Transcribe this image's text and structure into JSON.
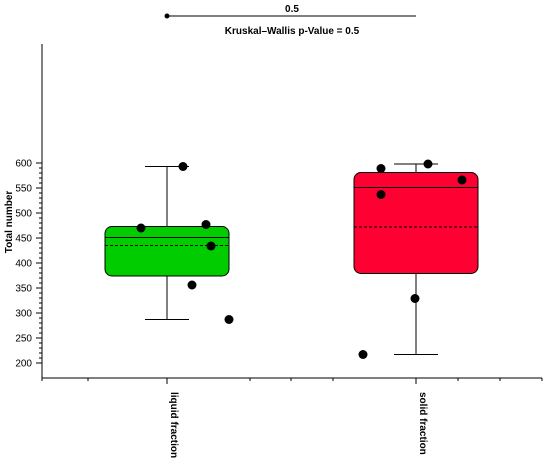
{
  "chart_data": {
    "type": "boxplot",
    "title": "Kruskal–Wallis p-Value = 0.5",
    "xlabel": "",
    "ylabel": "Total number",
    "ylim": [
      200,
      600
    ],
    "y_ticks": [
      200,
      250,
      300,
      350,
      400,
      450,
      500,
      550,
      600
    ],
    "categories": [
      "liquid fraction",
      "solid fraction"
    ],
    "boxes": [
      {
        "label": "liquid fraction",
        "color": "#00cc00",
        "whisker_low": 287,
        "q1": 374,
        "median": 451,
        "mean": 435,
        "q3": 473,
        "whisker_high": 593,
        "points": [
          593,
          470,
          477,
          434,
          356,
          287
        ]
      },
      {
        "label": "solid fraction",
        "color": "#ff0033",
        "whisker_low": 217,
        "q1": 379,
        "median": 551,
        "mean": 472,
        "q3": 581,
        "whisker_high": 598,
        "points": [
          598,
          589,
          566,
          537,
          329,
          217
        ]
      }
    ],
    "comparison": {
      "label": "0.5",
      "from": "liquid fraction",
      "to": "solid fraction"
    },
    "grid": false
  }
}
